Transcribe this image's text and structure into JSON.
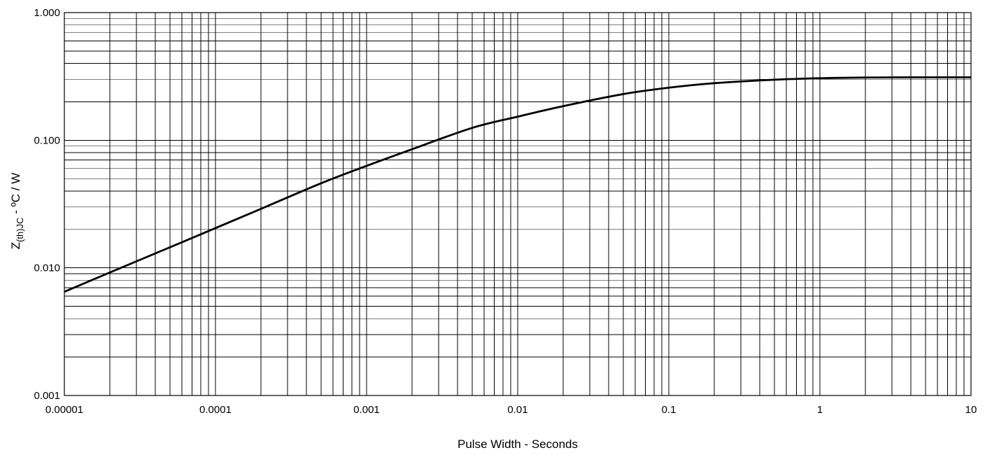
{
  "chart_data": {
    "type": "line",
    "title": "",
    "xlabel": "Pulse Width - Seconds",
    "ylabel": {
      "main": "Z",
      "sub": "(th)JC",
      "rest": " - ºC / W"
    },
    "x_scale": "log",
    "y_scale": "log",
    "xlim": [
      1e-05,
      10
    ],
    "ylim": [
      0.001,
      1
    ],
    "grid": true,
    "x_ticks": [
      1e-05,
      0.0001,
      0.001,
      0.01,
      0.1,
      1,
      10
    ],
    "x_tick_labels": [
      "0.00001",
      "0.0001",
      "0.001",
      "0.01",
      "0.1",
      "1",
      "10"
    ],
    "y_ticks": [
      0.001,
      0.01,
      0.1,
      1
    ],
    "y_tick_labels": [
      "0.001",
      "0.010",
      "0.100",
      "1.000"
    ],
    "series": [
      {
        "color": "#000000",
        "x": [
          1e-05,
          2e-05,
          5e-05,
          0.0001,
          0.0002,
          0.0005,
          0.001,
          0.002,
          0.005,
          0.01,
          0.02,
          0.05,
          0.1,
          0.2,
          0.5,
          1,
          2,
          5,
          10
        ],
        "y": [
          0.0065,
          0.0092,
          0.0145,
          0.0205,
          0.029,
          0.046,
          0.063,
          0.085,
          0.125,
          0.153,
          0.185,
          0.23,
          0.258,
          0.28,
          0.298,
          0.306,
          0.31,
          0.311,
          0.311
        ]
      }
    ]
  }
}
